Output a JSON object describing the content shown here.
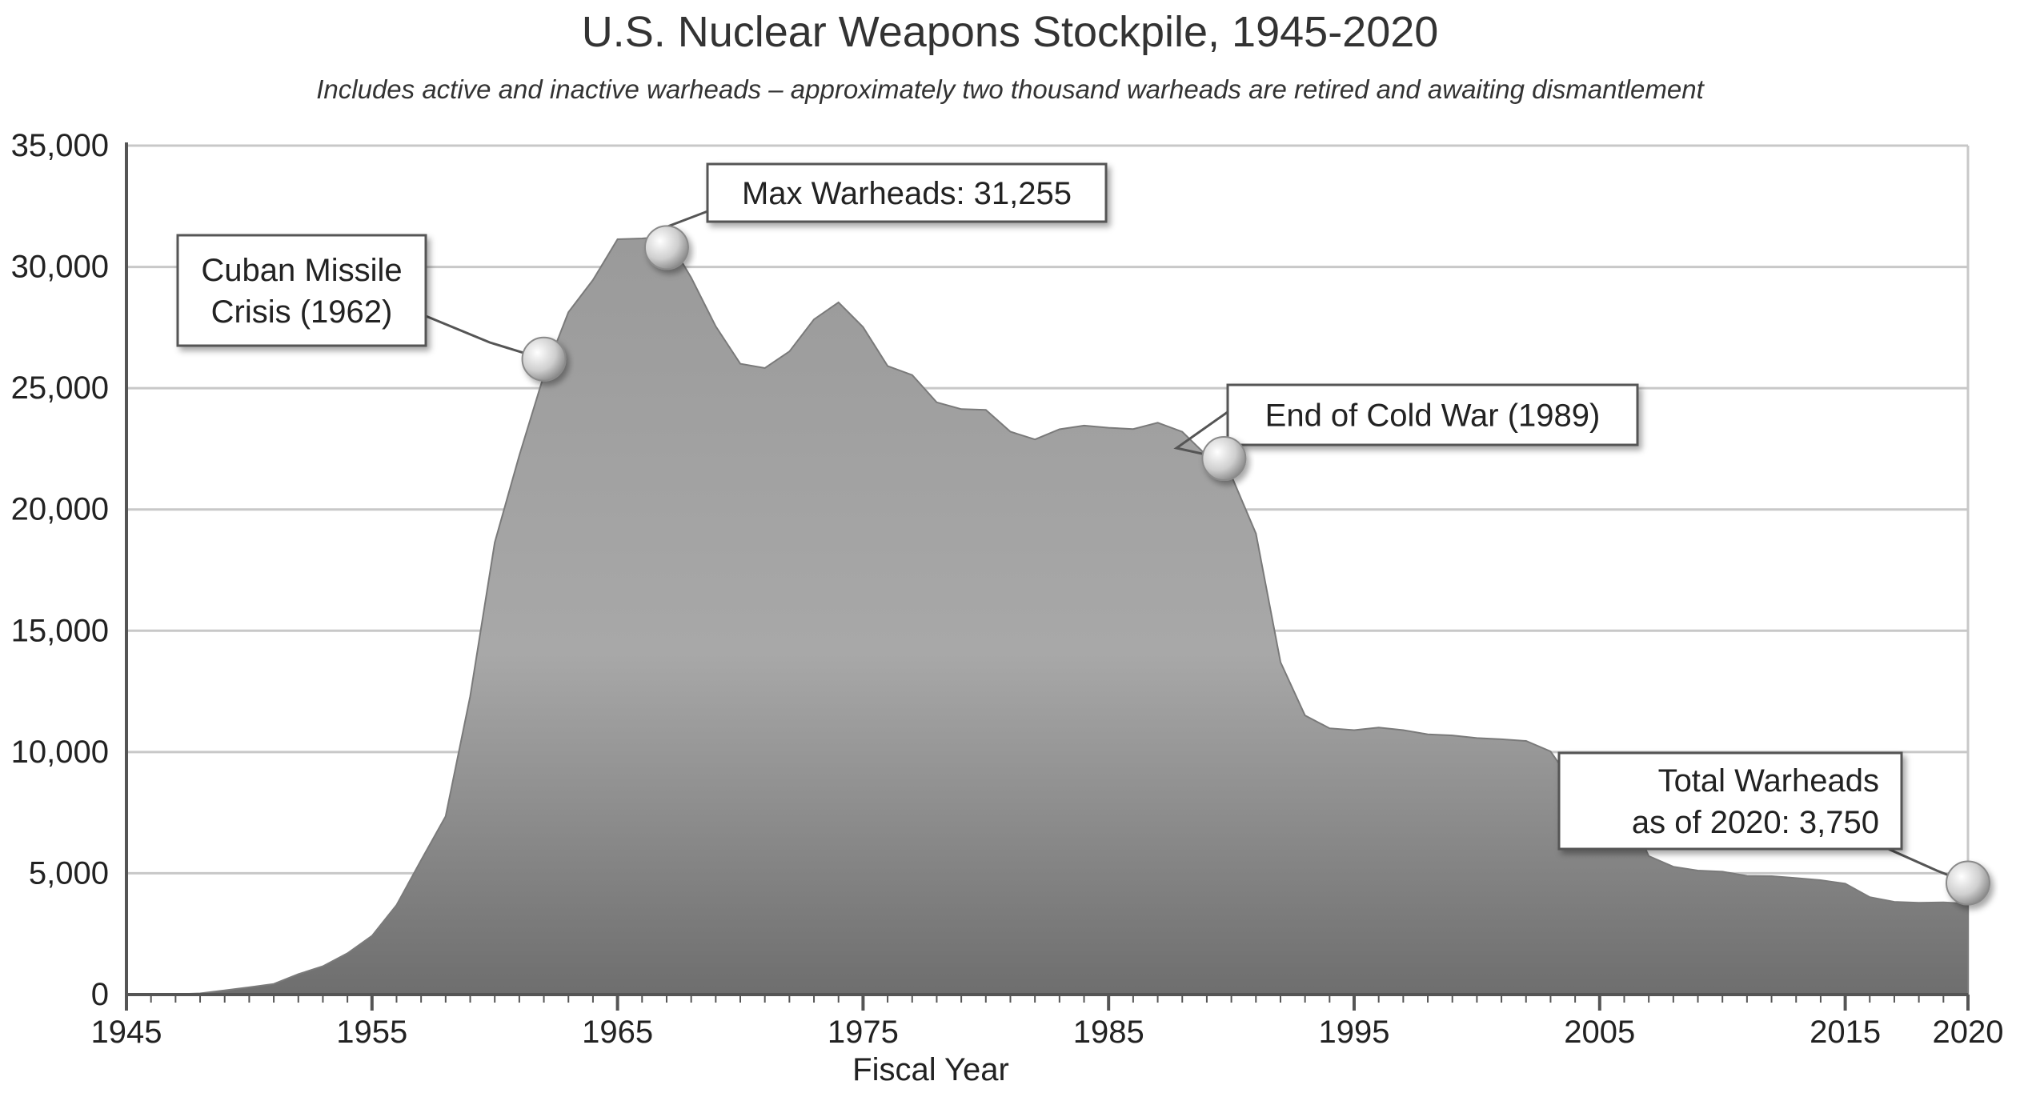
{
  "colors": {
    "area_top": "#9a9a9a",
    "area_bottom": "#6e6e6e",
    "grid": "#c8c8c8",
    "axis": "#555555",
    "marker": "#d0d0d0",
    "callout_border": "#555555"
  },
  "chart_data": {
    "type": "area",
    "title": "U.S. Nuclear Weapons Stockpile, 1945-2020",
    "subtitle": "Includes active and inactive warheads – approximately two thousand warheads are retired and awaiting dismantlement",
    "xlabel": "Fiscal Year",
    "ylabel": "",
    "xlim": [
      1945,
      2020
    ],
    "ylim": [
      0,
      35000
    ],
    "grid": true,
    "x_ticks": [
      1945,
      1955,
      1965,
      1975,
      1985,
      1995,
      2005,
      2015,
      2020
    ],
    "x_tick_labels": [
      "1945",
      "1955",
      "1965",
      "1975",
      "1985",
      "1995",
      "2005",
      "2015",
      "2020"
    ],
    "y_ticks": [
      0,
      5000,
      10000,
      15000,
      20000,
      25000,
      30000,
      35000
    ],
    "y_tick_labels": [
      "0",
      "5,000",
      "10,000",
      "15,000",
      "20,000",
      "25,000",
      "30,000",
      "35,000"
    ],
    "series": [
      {
        "x": [
          1945,
          1946,
          1947,
          1948,
          1949,
          1950,
          1951,
          1952,
          1953,
          1954,
          1955,
          1956,
          1957,
          1958,
          1959,
          1960,
          1961,
          1962,
          1963,
          1964,
          1965,
          1966,
          1967,
          1968,
          1969,
          1970,
          1971,
          1972,
          1973,
          1974,
          1975,
          1976,
          1977,
          1978,
          1979,
          1980,
          1981,
          1982,
          1983,
          1984,
          1985,
          1986,
          1987,
          1988,
          1989,
          1990,
          1991,
          1992,
          1993,
          1994,
          1995,
          1996,
          1997,
          1998,
          1999,
          2000,
          2001,
          2002,
          2003,
          2004,
          2005,
          2006,
          2007,
          2008,
          2009,
          2010,
          2011,
          2012,
          2013,
          2014,
          2015,
          2016,
          2017,
          2018,
          2019,
          2020
        ],
        "y": [
          2,
          9,
          13,
          50,
          170,
          299,
          438,
          841,
          1169,
          1703,
          2422,
          3692,
          5543,
          7345,
          12298,
          18638,
          22229,
          25540,
          28133,
          29463,
          31139,
          31175,
          31255,
          29561,
          27552,
          26008,
          25830,
          26516,
          27835,
          28537,
          27519,
          25914,
          25542,
          24418,
          24138,
          24104,
          23208,
          22886,
          23305,
          23459,
          23368,
          23317,
          23575,
          23205,
          22217,
          21392,
          19008,
          13708,
          11511,
          10979,
          10904,
          11011,
          10903,
          10732,
          10685,
          10577,
          10526,
          10457,
          10027,
          8570,
          8360,
          7853,
          5709,
          5273,
          5113,
          5066,
          4897,
          4881,
          4804,
          4717,
          4571,
          4018,
          3822,
          3785,
          3805,
          3750
        ]
      }
    ],
    "annotations": [
      {
        "text_lines": [
          "Cuban Missile",
          "Crisis (1962)"
        ],
        "x": 1962,
        "y": 26200
      },
      {
        "text_lines": [
          "Max Warheads: 31,255"
        ],
        "x": 1967,
        "y": 30800
      },
      {
        "text_lines": [
          "End of Cold War (1989)"
        ],
        "x": 1989.7,
        "y": 22100
      },
      {
        "text_lines": [
          "Total Warheads",
          "as of 2020: 3,750"
        ],
        "x": 2020,
        "y": 4600
      }
    ]
  }
}
